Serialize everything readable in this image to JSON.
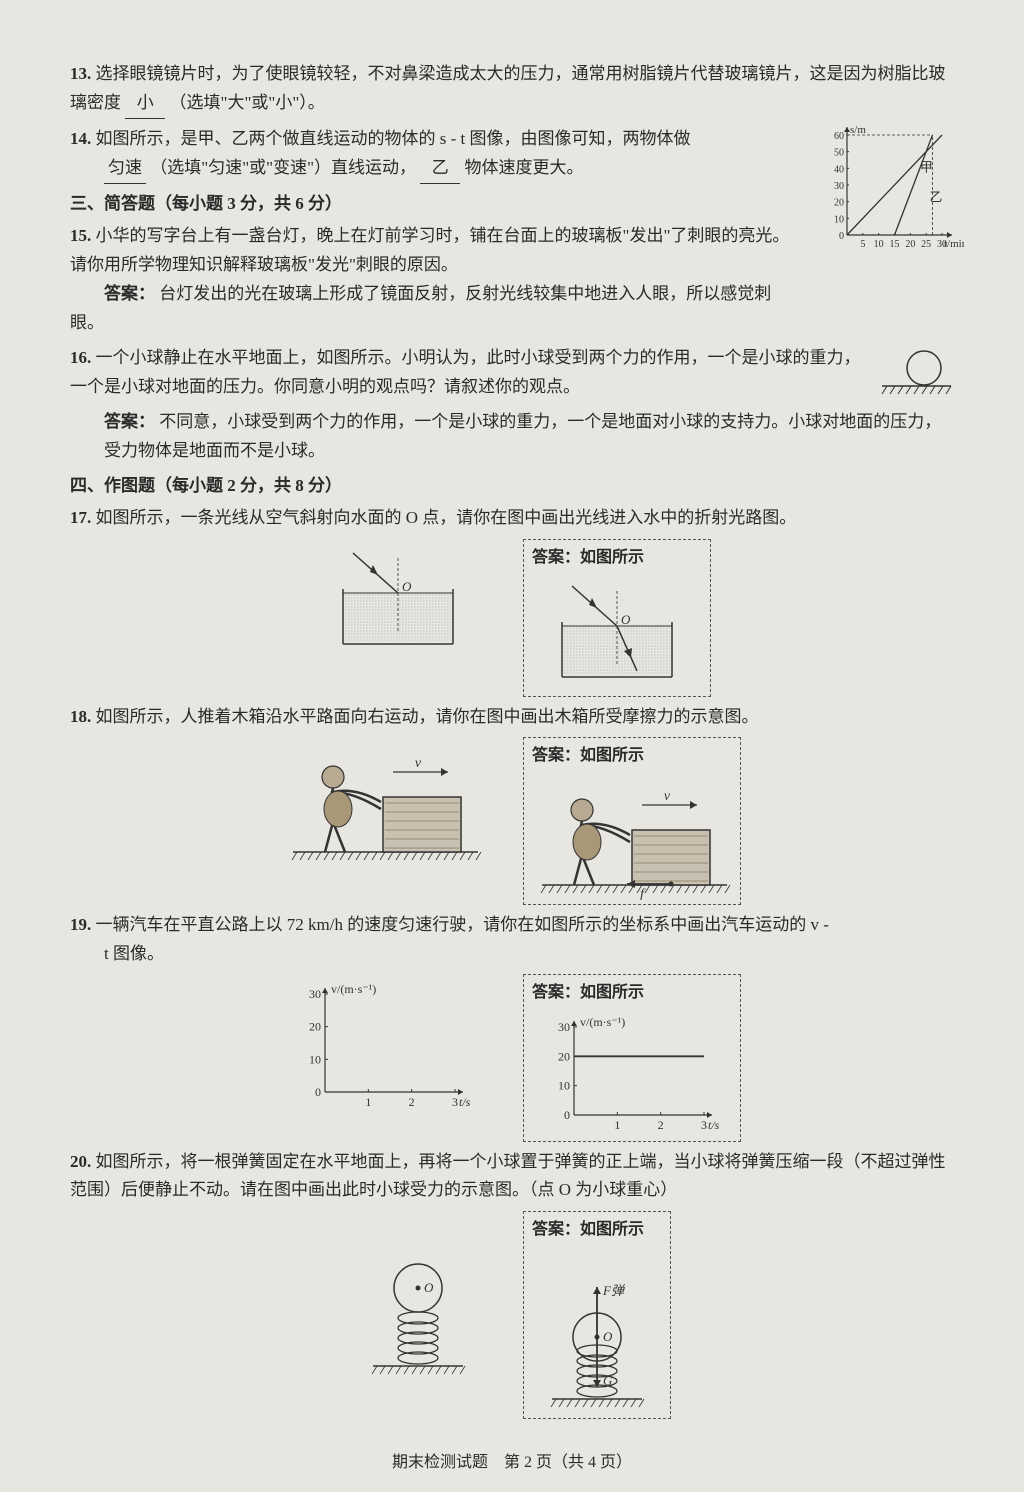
{
  "q13": {
    "num": "13.",
    "text_a": "选择眼镜镜片时，为了使眼镜较轻，不对鼻梁造成太大的压力，通常用树脂镜片代替玻璃镜片，这是因为树脂比玻璃密度",
    "blank": "小",
    "text_b": "（选填\"大\"或\"小\"）。"
  },
  "q14": {
    "num": "14.",
    "text_a": "如图所示，是甲、乙两个做直线运动的物体的 s - t 图像，由图像可知，两物体做",
    "blank1": "匀速",
    "text_b": "（选填\"匀速\"或\"变速\"）直线运动，",
    "blank2": "乙",
    "text_c": "物体速度更大。",
    "chart": {
      "type": "line",
      "xlabel": "t/min",
      "ylabel": "s/m",
      "xticks": [
        5,
        10,
        15,
        20,
        25,
        30
      ],
      "yticks": [
        0,
        10,
        20,
        30,
        40,
        50,
        60
      ],
      "series": [
        {
          "label": "甲",
          "points": [
            [
              0,
              0
            ],
            [
              30,
              60
            ]
          ],
          "color": "#333"
        },
        {
          "label": "乙",
          "points": [
            [
              15,
              0
            ],
            [
              27,
              60
            ]
          ],
          "color": "#333"
        }
      ],
      "label_positions": {
        "甲": [
          23,
          38
        ],
        "乙": [
          26,
          20
        ]
      },
      "dash_lines": [
        [
          0,
          60,
          27,
          60
        ],
        [
          27,
          0,
          27,
          60
        ]
      ]
    }
  },
  "section3": "三、简答题（每小题 3 分，共 6 分）",
  "q15": {
    "num": "15.",
    "text": "小华的写字台上有一盏台灯，晚上在灯前学习时，铺在台面上的玻璃板\"发出\"了刺眼的亮光。请你用所学物理知识解释玻璃板\"发光\"刺眼的原因。",
    "ans_label": "答案：",
    "ans": "台灯发出的光在玻璃上形成了镜面反射，反射光线较集中地进入人眼，所以感觉刺眼。"
  },
  "q16": {
    "num": "16.",
    "text": "一个小球静止在水平地面上，如图所示。小明认为，此时小球受到两个力的作用，一个是小球的重力，一个是小球对地面的压力。你同意小明的观点吗？请叙述你的观点。",
    "ans_label": "答案：",
    "ans": "不同意，小球受到两个力的作用，一个是小球的重力，一个是地面对小球的支持力。小球对地面的压力，受力物体是地面而不是小球。"
  },
  "section4": "四、作图题（每小题 2 分，共 8 分）",
  "q17": {
    "num": "17.",
    "text": "如图所示，一条光线从空气斜射向水面的 O 点，请你在图中画出光线进入水中的折射光路图。",
    "ans_title": "答案：如图所示"
  },
  "q18": {
    "num": "18.",
    "text": "如图所示，人推着木箱沿水平路面向右运动，请你在图中画出木箱所受摩擦力的示意图。",
    "ans_title": "答案：如图所示",
    "v_label": "v",
    "f_label": "f"
  },
  "q19": {
    "num": "19.",
    "text_a": "一辆汽车在平直公路上以 72 km/h 的速度匀速行驶，请你在如图所示的坐标系中画出汽车运动的 v - ",
    "text_b": "t 图像。",
    "ans_title": "答案：如图所示",
    "chart": {
      "type": "line",
      "ylabel": "v/(m·s⁻¹)",
      "xlabel": "t/s",
      "yticks": [
        0,
        10,
        20,
        30
      ],
      "xticks": [
        1,
        2,
        3
      ],
      "ans_value": 20
    }
  },
  "q20": {
    "num": "20.",
    "text": "如图所示，将一根弹簧固定在水平地面上，再将一个小球置于弹簧的正上端，当小球将弹簧压缩一段（不超过弹性范围）后便静止不动。请在图中画出此时小球受力的示意图。（点 O 为小球重心）",
    "ans_title": "答案：如图所示",
    "o_label": "O",
    "f_label": "F弹",
    "g_label": "G"
  },
  "footer": "期末检测试题　第 2 页（共 4 页）",
  "colors": {
    "text": "#2a2a2a",
    "bg": "#e8e6e0",
    "line": "#333333",
    "box_fill": "#c8c0b0",
    "dash": "#555555"
  }
}
